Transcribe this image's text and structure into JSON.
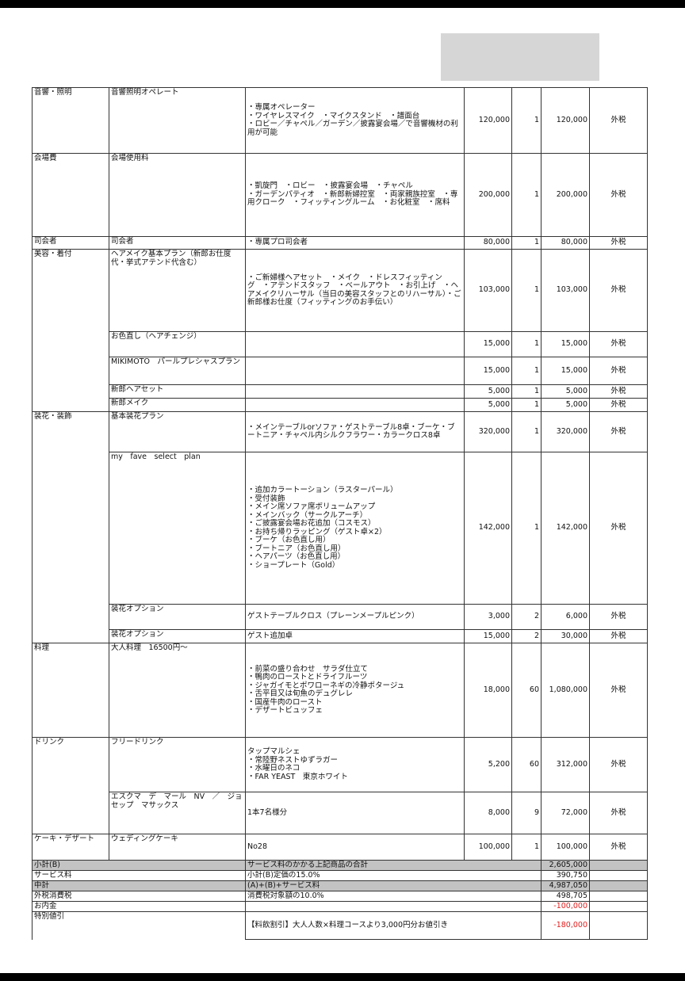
{
  "groups": [
    {
      "category": "音響・照明",
      "items": [
        {
          "name": "音響照明オペレート",
          "desc": "・専属オペレーター\n・ワイヤレスマイク　・マイクスタンド　・譜面台\n・ロビー／チャペル／ガーデン／披露宴会場／で音響機材の利用が可能",
          "price": "120,000",
          "qty": "1",
          "amount": "120,000",
          "tax": "外税"
        }
      ]
    },
    {
      "category": "会場費",
      "items": [
        {
          "name": "会場使用料",
          "desc": "・凱旋門　・ロビー　・披露宴会場　・チャペル\n・ガーデンパティオ　・新郎新婦控室　・両家親族控室　・専用クローク　・フィッティングルーム　・お化粧室　・席料",
          "price": "200,000",
          "qty": "1",
          "amount": "200,000",
          "tax": "外税"
        }
      ]
    },
    {
      "category": "司会者",
      "items": [
        {
          "name": "司会者",
          "desc": "・専属プロ司会者",
          "price": "80,000",
          "qty": "1",
          "amount": "80,000",
          "tax": "外税"
        }
      ]
    },
    {
      "category": "美容・着付",
      "items": [
        {
          "name": "ヘアメイク基本プラン（新郎お仕度代・挙式アテンド代含む）",
          "desc": "・ご新婦様ヘアセット　・メイク　・ドレスフィッティング　・アテンドスタッフ　・ベールアウト　・お引上げ　・ヘアメイクリハーサル（当日の美容スタッフとのリハーサル）・ご新郎様お仕度（フィッティングのお手伝い）",
          "price": "103,000",
          "qty": "1",
          "amount": "103,000",
          "tax": "外税"
        },
        {
          "name": "お色直し（ヘアチェンジ）",
          "desc": "",
          "price": "15,000",
          "qty": "1",
          "amount": "15,000",
          "tax": "外税"
        },
        {
          "name": "MIKIMOTO　パールプレシャスプラン",
          "desc": "",
          "price": "15,000",
          "qty": "1",
          "amount": "15,000",
          "tax": "外税"
        },
        {
          "name": "新郎ヘアセット",
          "desc": "",
          "price": "5,000",
          "qty": "1",
          "amount": "5,000",
          "tax": "外税"
        },
        {
          "name": "新郎メイク",
          "desc": "",
          "price": "5,000",
          "qty": "1",
          "amount": "5,000",
          "tax": "外税"
        }
      ]
    },
    {
      "category": "装花・装飾",
      "items": [
        {
          "name": "基本装花プラン",
          "desc": "・メインテーブルorソファ・ゲストテーブル8卓・ブーケ・ブートニア・チャペル内シルクフラワー・カラークロス8卓",
          "price": "320,000",
          "qty": "1",
          "amount": "320,000",
          "tax": "外税"
        },
        {
          "name": "my　fave　select　plan",
          "desc": "・追加カラートーション（ラスターパール）\n・受付装飾\n・メイン席ソファ席ボリュームアップ\n・メインバック（サークルアーチ）\n・ご披露宴会場お花追加（コスモス）\n・お持ち帰りラッピング（ゲスト卓×2）\n・ブーケ（お色直し用）\n・ブートニア（お色直し用）\n・ヘアパーツ（お色直し用）\n・ショープレート（Gold）",
          "price": "142,000",
          "qty": "1",
          "amount": "142,000",
          "tax": "外税"
        },
        {
          "name": "装花オプション",
          "desc": "ゲストテーブルクロス（プレーンメープルピンク）",
          "price": "3,000",
          "qty": "2",
          "amount": "6,000",
          "tax": "外税"
        },
        {
          "name": "装花オプション",
          "desc": "ゲスト追加卓",
          "price": "15,000",
          "qty": "2",
          "amount": "30,000",
          "tax": "外税"
        }
      ]
    },
    {
      "category": "料理",
      "items": [
        {
          "name": "大人料理　16500円〜",
          "desc": "・前菜の盛り合わせ　サラダ仕立て\n・鴨肉のローストとドライフルーツ\n・ジャガイモとポワローネギの冷静ポタージュ\n・舌平目又は旬魚のデュグレレ\n・国産牛肉のロースト\n・デザートビュッフェ",
          "price": "18,000",
          "qty": "60",
          "amount": "1,080,000",
          "tax": "外税"
        }
      ]
    },
    {
      "category": "ドリンク",
      "items": [
        {
          "name": "フリードリンク",
          "desc": "タップマルシェ\n・常陸野ネストゆずラガー\n・水曜日のネコ\n・FAR YEAST　東京ホワイト",
          "price": "5,200",
          "qty": "60",
          "amount": "312,000",
          "tax": "外税"
        },
        {
          "name": "エスクマ　デ　マール　NV　／　ジョセップ　マサックス",
          "desc": "1本7名様分",
          "price": "8,000",
          "qty": "9",
          "amount": "72,000",
          "tax": "外税"
        }
      ]
    },
    {
      "category": "ケーキ・デザート",
      "items": [
        {
          "name": "ウェディングケーキ",
          "desc": "No28",
          "price": "100,000",
          "qty": "1",
          "amount": "100,000",
          "tax": "外税"
        }
      ]
    }
  ],
  "summary": [
    {
      "label": "小計(B)",
      "desc": "サービス料のかかる上記商品の合計",
      "amount": "2,605,000",
      "highlight": true
    },
    {
      "label": "サービス料",
      "desc": "小計(B)定価の15.0%",
      "amount": "390,750"
    },
    {
      "label": "中計",
      "desc": "(A)+(B)+サービス料",
      "amount": "4,987,050",
      "highlight": true
    },
    {
      "label": "外税消費税",
      "desc": "消費税対象額の10.0%",
      "amount": "498,705"
    },
    {
      "label": "お内金",
      "desc": "",
      "amount": "-100,000",
      "negative": true
    },
    {
      "label": "特別値引",
      "desc": "【料飲割引】大人人数×料理コースより3,000円分お値引き",
      "amount": "-180,000",
      "negative": true
    }
  ],
  "colors": {
    "negative": "#e02020",
    "highlight_row": "#c3c3c3",
    "redaction_box": "#d6d6d6"
  }
}
